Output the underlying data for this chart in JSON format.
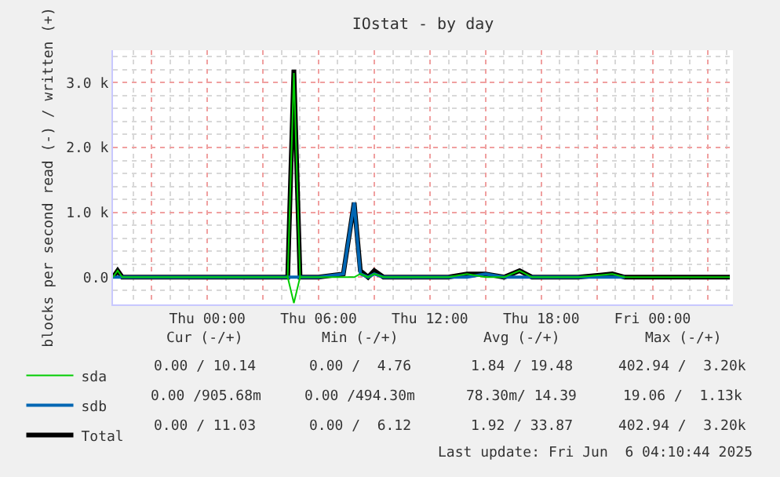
{
  "chart_data": {
    "type": "line",
    "title": "IOstat - by day",
    "ylabel": "blocks per second read (-) / written (+)",
    "x": [
      "2025-06-04T18:55",
      "2025-06-04T19:10",
      "2025-06-04T19:25",
      "2025-06-04T21:00",
      "2025-06-04T23:00",
      "2025-06-05T01:00",
      "2025-06-05T03:00",
      "2025-06-05T04:20",
      "2025-06-05T04:40",
      "2025-06-05T05:00",
      "2025-06-05T06:00",
      "2025-06-05T07:20",
      "2025-06-05T07:55",
      "2025-06-05T08:15",
      "2025-06-05T08:40",
      "2025-06-05T09:00",
      "2025-06-05T09:30",
      "2025-06-05T10:30",
      "2025-06-05T12:00",
      "2025-06-05T13:00",
      "2025-06-05T14:00",
      "2025-06-05T15:00",
      "2025-06-05T16:00",
      "2025-06-05T16:50",
      "2025-06-05T17:30",
      "2025-06-05T20:00",
      "2025-06-05T21:50",
      "2025-06-05T22:30",
      "2025-06-06T00:00",
      "2025-06-06T02:00",
      "2025-06-06T04:10"
    ],
    "series": [
      {
        "name": "sda",
        "color": "#00cc00",
        "values": [
          0,
          100,
          0,
          0,
          0,
          0,
          0,
          0,
          3150,
          0,
          0,
          0,
          0,
          50,
          0,
          50,
          0,
          0,
          0,
          0,
          50,
          0,
          0,
          100,
          0,
          0,
          50,
          0,
          0,
          0,
          0
        ]
      },
      {
        "color": "#00cc00",
        "values": [
          null,
          null,
          null,
          null,
          null,
          null,
          null,
          0,
          -400,
          0,
          null,
          null,
          null,
          null,
          null,
          null,
          null,
          null,
          null,
          null,
          null,
          null,
          null,
          null,
          null,
          null,
          null,
          null,
          null,
          null,
          null
        ]
      },
      {
        "name": "sdb",
        "color": "#0066b3",
        "values": [
          0,
          0,
          0,
          0,
          0,
          0,
          0,
          0,
          0,
          0,
          0,
          50,
          1150,
          50,
          0,
          50,
          0,
          0,
          0,
          0,
          0,
          50,
          0,
          0,
          0,
          0,
          0,
          0,
          null,
          null,
          null
        ]
      },
      {
        "name": "Total",
        "color": "#000000",
        "values": [
          0,
          100,
          0,
          0,
          0,
          0,
          0,
          0,
          3200,
          0,
          0,
          50,
          1150,
          100,
          0,
          100,
          0,
          0,
          0,
          0,
          50,
          50,
          0,
          100,
          0,
          0,
          50,
          0,
          0,
          0,
          0
        ]
      }
    ],
    "xlim": [
      "2025-06-04T18:55",
      "2025-06-06T04:20"
    ],
    "xticks": [
      {
        "value": "2025-06-04T21:00",
        "label": null
      },
      {
        "value": "2025-06-05T00:00",
        "label": "Thu 00:00"
      },
      {
        "value": "2025-06-05T03:00",
        "label": null
      },
      {
        "value": "2025-06-05T06:00",
        "label": "Thu 06:00"
      },
      {
        "value": "2025-06-05T09:00",
        "label": null
      },
      {
        "value": "2025-06-05T12:00",
        "label": "Thu 12:00"
      },
      {
        "value": "2025-06-05T15:00",
        "label": null
      },
      {
        "value": "2025-06-05T18:00",
        "label": "Thu 18:00"
      },
      {
        "value": "2025-06-05T21:00",
        "label": null
      },
      {
        "value": "2025-06-06T00:00",
        "label": "Fri 00:00"
      },
      {
        "value": "2025-06-06T03:00",
        "label": null
      }
    ],
    "ylim": [
      -420,
      3500
    ],
    "yticks": [
      {
        "value": 0,
        "label": "0.0"
      },
      {
        "value": 1000,
        "label": "1.0 k"
      },
      {
        "value": 2000,
        "label": "2.0 k"
      },
      {
        "value": 3000,
        "label": "3.0 k"
      }
    ],
    "grid": true,
    "legend": "bottom left",
    "marker": "none",
    "line_style": "solid",
    "annotations": [
      "Cur (-/+)",
      "Min (-/+)",
      "Avg (-/+)",
      "Max (-/+)",
      "0.00 / 10.14",
      "0.00 /  4.76",
      "1.84 / 19.48",
      "402.94 /  3.20k",
      "0.00 /905.68m",
      "0.00 /494.30m",
      "78.30m/ 14.39",
      "19.06 /  1.13k",
      "0.00 / 11.03",
      "0.00 /  6.12",
      "1.92 / 33.87",
      "402.94 /  3.20k",
      "Last update: Fri Jun  6 04:10:44 2025"
    ]
  }
}
